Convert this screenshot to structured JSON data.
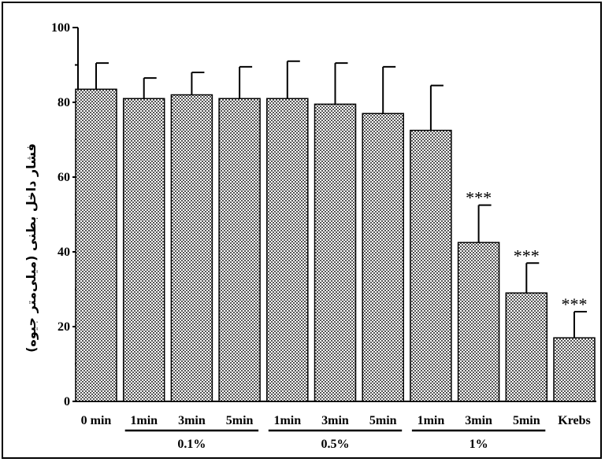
{
  "chart_data": {
    "type": "bar",
    "ylabel": "فشار داخل بطنی (میلی‌متر جیوه)",
    "xlabel": "",
    "title": "",
    "ylim": [
      0,
      100
    ],
    "yticks": [
      0,
      20,
      40,
      60,
      80,
      100
    ],
    "grid": false,
    "categories": [
      "0 min",
      "1min",
      "3min",
      "5min",
      "1min",
      "3min",
      "5min",
      "1min",
      "3min",
      "5min",
      "Krebs"
    ],
    "values": [
      83.5,
      81,
      82,
      81,
      81,
      79.5,
      77,
      72.5,
      42.5,
      29,
      17
    ],
    "errors": [
      7,
      5.5,
      6,
      8.5,
      10,
      11,
      12.5,
      12,
      10,
      8,
      7
    ],
    "significance": [
      "",
      "",
      "",
      "",
      "",
      "",
      "",
      "",
      "***",
      "***",
      "***"
    ],
    "groups": [
      {
        "label": "0.1%",
        "from": 1,
        "to": 3
      },
      {
        "label": "0.5%",
        "from": 4,
        "to": 6
      },
      {
        "label": "1%",
        "from": 7,
        "to": 9
      }
    ],
    "colors": {
      "bar_fill": "#9a9a9a",
      "bar_stroke": "#000000"
    }
  }
}
